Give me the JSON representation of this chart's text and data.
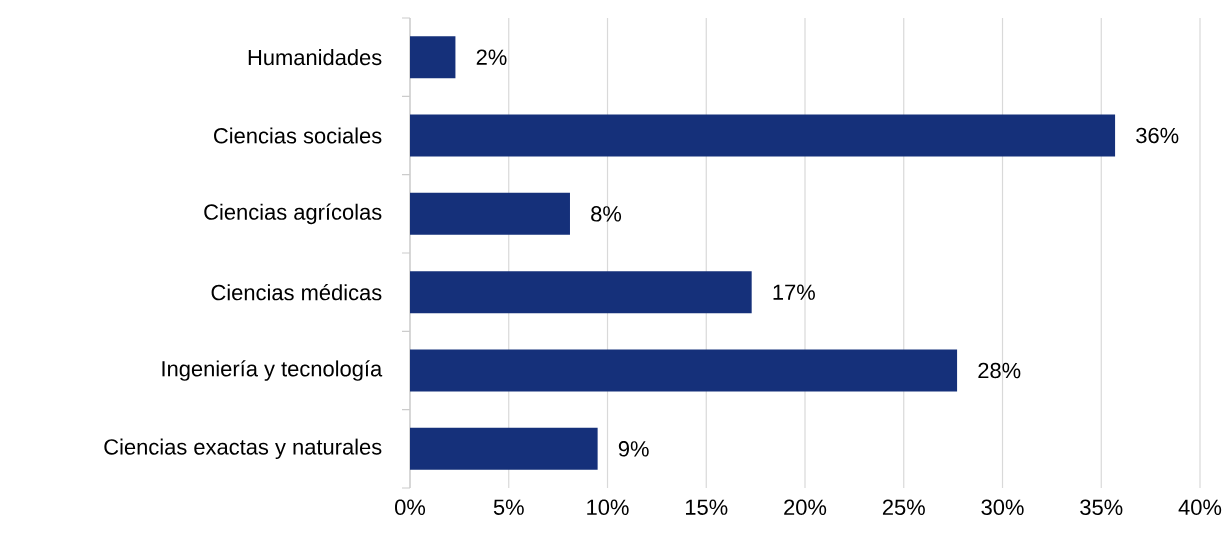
{
  "chart_data": {
    "type": "bar",
    "orientation": "horizontal",
    "categories": [
      "Humanidades",
      "Ciencias sociales",
      "Ciencias agrícolas",
      "Ciencias médicas",
      "Ingeniería y tecnología",
      "Ciencias exactas y naturales"
    ],
    "values": [
      2.3,
      35.7,
      8.1,
      17.3,
      27.7,
      9.5
    ],
    "value_labels": [
      "2%",
      "36%",
      "8%",
      "17%",
      "28%",
      "9%"
    ],
    "color": "#15307a",
    "xlim": [
      0,
      40
    ],
    "xticks": [
      {
        "value": 0,
        "label": "0%"
      },
      {
        "value": 5,
        "label": "5%"
      },
      {
        "value": 10,
        "label": "10%"
      },
      {
        "value": 15,
        "label": "15%"
      },
      {
        "value": 20,
        "label": "20%"
      },
      {
        "value": 25,
        "label": "25%"
      },
      {
        "value": 30,
        "label": "30%"
      },
      {
        "value": 35,
        "label": "35%"
      },
      {
        "value": 40,
        "label": "40%"
      }
    ],
    "grid": "x"
  }
}
